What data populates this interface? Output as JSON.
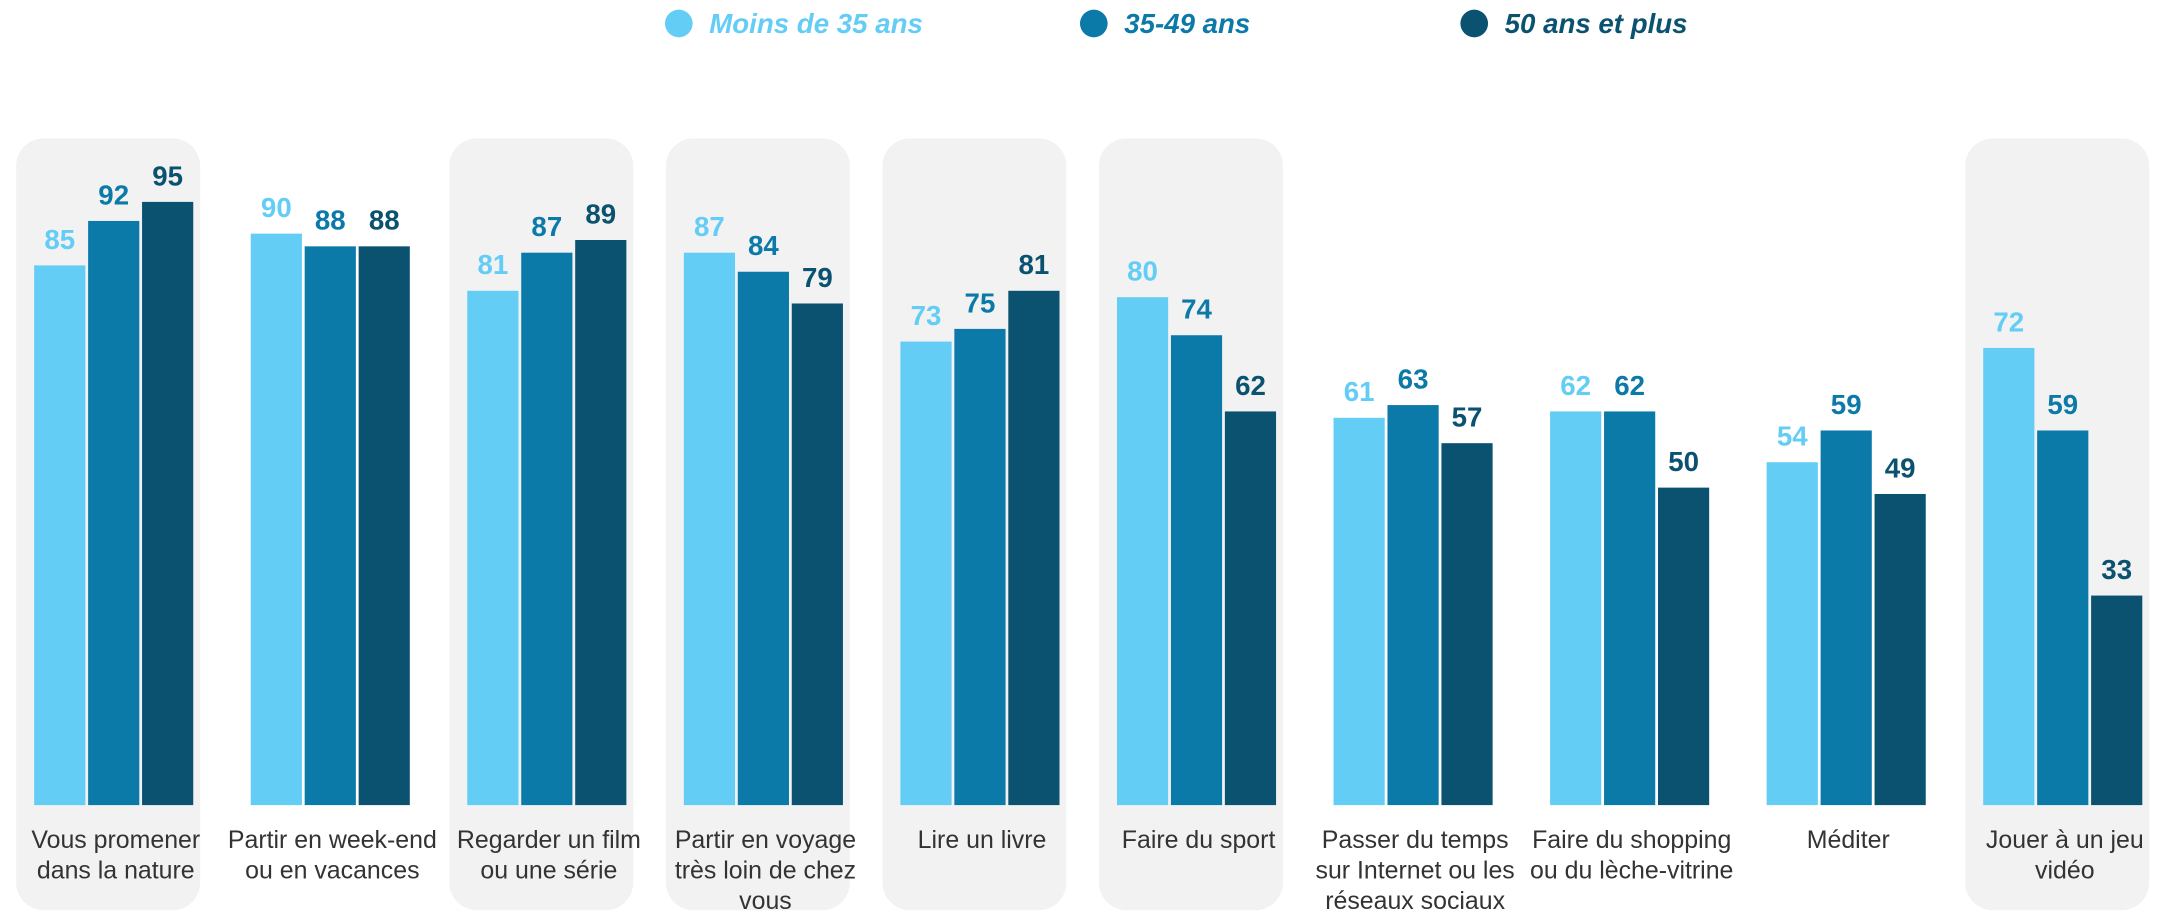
{
  "chart_data": {
    "type": "bar",
    "categories": [
      "Vous promener dans la nature",
      "Partir en week-end ou en vacances",
      "Regarder un film ou une série",
      "Partir en voyage très loin de chez vous",
      "Lire un livre",
      "Faire du sport",
      "Passer du temps sur Internet ou les réseaux sociaux",
      "Faire du shopping ou du lèche-vitrine",
      "Méditer",
      "Jouer à un jeu vidéo"
    ],
    "series": [
      {
        "name": "Moins de 35 ans",
        "color": "#63cdf5",
        "values": [
          85,
          90,
          81,
          87,
          73,
          80,
          61,
          62,
          54,
          72
        ]
      },
      {
        "name": "35-49 ans",
        "color": "#0b7aa8",
        "values": [
          92,
          88,
          87,
          84,
          75,
          74,
          63,
          62,
          59,
          59
        ]
      },
      {
        "name": "50 ans et plus",
        "color": "#0a5270",
        "values": [
          95,
          88,
          89,
          79,
          81,
          62,
          57,
          50,
          49,
          33
        ]
      }
    ],
    "legend": "top"
  }
}
